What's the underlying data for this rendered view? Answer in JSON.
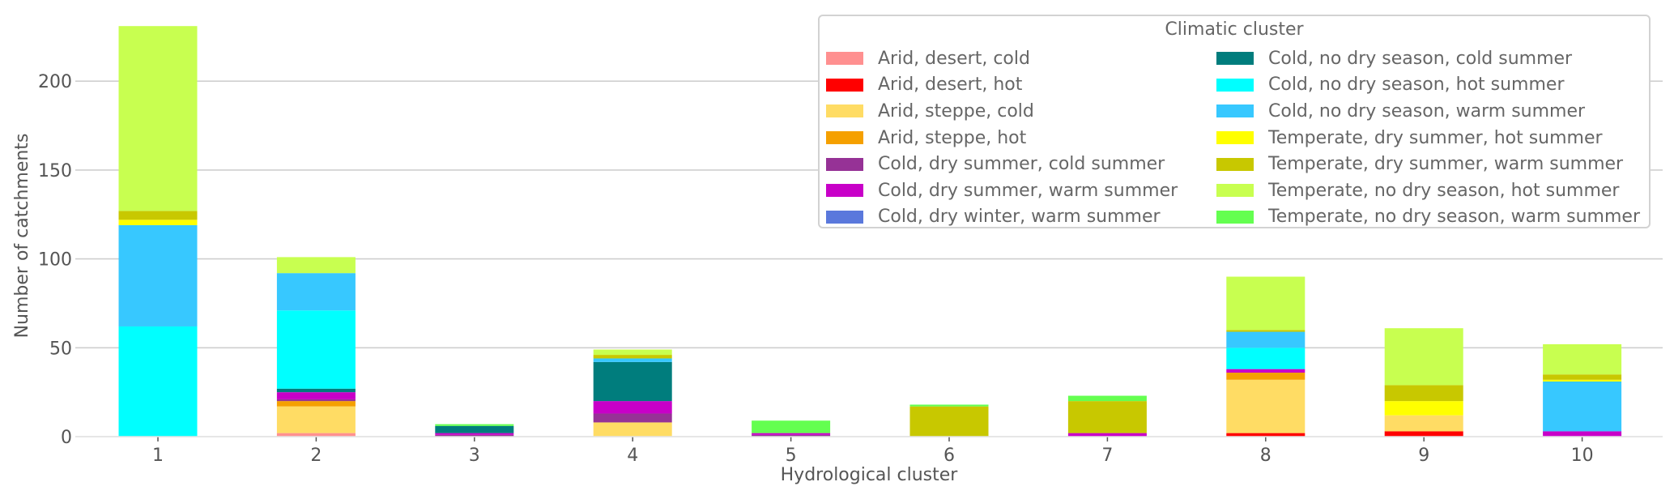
{
  "chart_data": {
    "type": "bar",
    "stacked": true,
    "xlabel": "Hydrological cluster",
    "ylabel": "Number of catchments",
    "ylim": [
      0,
      232
    ],
    "yticks": [
      0,
      50,
      100,
      150,
      200
    ],
    "grid": "horizontal",
    "legend_title": "Climatic cluster",
    "legend_position": "top-right",
    "categories": [
      "1",
      "2",
      "3",
      "4",
      "5",
      "6",
      "7",
      "8",
      "9",
      "10"
    ],
    "series": [
      {
        "name": "Arid, desert, cold",
        "color": "#FF9090",
        "values": [
          0,
          2,
          0,
          0,
          0,
          0,
          0,
          0,
          0,
          0
        ]
      },
      {
        "name": "Arid, desert, hot",
        "color": "#FF0000",
        "values": [
          0,
          0,
          0,
          0,
          0,
          0,
          0,
          2,
          3,
          0
        ]
      },
      {
        "name": "Arid, steppe, cold",
        "color": "#FFDC64",
        "values": [
          0,
          15,
          0,
          8,
          0,
          0,
          0,
          30,
          9,
          0
        ]
      },
      {
        "name": "Arid, steppe, hot",
        "color": "#F5A000",
        "values": [
          0,
          3,
          0,
          0,
          0,
          0,
          0,
          4,
          0,
          0
        ]
      },
      {
        "name": "Cold, dry summer, cold summer",
        "color": "#963296",
        "values": [
          0,
          1,
          1,
          5,
          1,
          0,
          0,
          0,
          0,
          0
        ]
      },
      {
        "name": "Cold, dry summer, warm summer",
        "color": "#C800C8",
        "values": [
          0,
          4,
          1,
          7,
          1,
          0,
          2,
          2,
          0,
          3
        ]
      },
      {
        "name": "Cold, dry winter, warm summer",
        "color": "#5A78DC",
        "values": [
          0,
          0,
          0,
          0,
          0,
          0,
          0,
          0,
          0,
          0
        ]
      },
      {
        "name": "Cold, no dry season, cold summer",
        "color": "#007D7D",
        "values": [
          0,
          2,
          4,
          22,
          0,
          0,
          0,
          0,
          0,
          0
        ]
      },
      {
        "name": "Cold, no dry season, hot summer",
        "color": "#00FFFF",
        "values": [
          62,
          44,
          0,
          0,
          0,
          0,
          0,
          12,
          0,
          0
        ]
      },
      {
        "name": "Cold, no dry season, warm summer",
        "color": "#37C8FF",
        "values": [
          57,
          21,
          0,
          2,
          0,
          0,
          0,
          9,
          0,
          28
        ]
      },
      {
        "name": "Temperate, dry summer, hot summer",
        "color": "#FFFF00",
        "values": [
          3,
          0,
          0,
          0,
          0,
          0,
          0,
          0,
          8,
          1
        ]
      },
      {
        "name": "Temperate, dry summer, warm summer",
        "color": "#C8C800",
        "values": [
          5,
          0,
          0,
          2,
          0,
          17,
          18,
          1,
          9,
          3
        ]
      },
      {
        "name": "Temperate, no dry season, hot summer",
        "color": "#C8FF50",
        "values": [
          104,
          9,
          0,
          3,
          0,
          0,
          0,
          30,
          32,
          17
        ]
      },
      {
        "name": "Temperate, no dry season, warm summer",
        "color": "#64FF50",
        "values": [
          0,
          0,
          1,
          0,
          7,
          1,
          3,
          0,
          0,
          0
        ]
      }
    ]
  }
}
